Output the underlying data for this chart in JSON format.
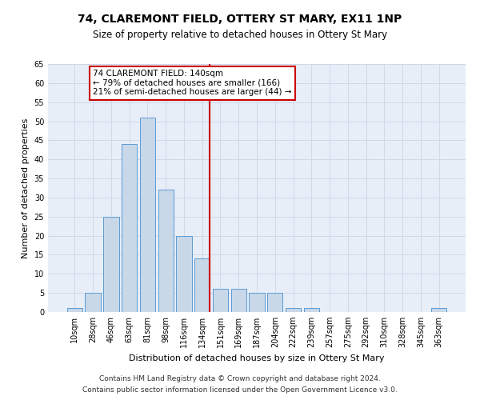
{
  "title": "74, CLAREMONT FIELD, OTTERY ST MARY, EX11 1NP",
  "subtitle": "Size of property relative to detached houses in Ottery St Mary",
  "xlabel": "Distribution of detached houses by size in Ottery St Mary",
  "ylabel": "Number of detached properties",
  "categories": [
    "10sqm",
    "28sqm",
    "46sqm",
    "63sqm",
    "81sqm",
    "98sqm",
    "116sqm",
    "134sqm",
    "151sqm",
    "169sqm",
    "187sqm",
    "204sqm",
    "222sqm",
    "239sqm",
    "257sqm",
    "275sqm",
    "292sqm",
    "310sqm",
    "328sqm",
    "345sqm",
    "363sqm"
  ],
  "values": [
    1,
    5,
    25,
    44,
    51,
    32,
    20,
    14,
    6,
    6,
    5,
    5,
    1,
    1,
    0,
    0,
    0,
    0,
    0,
    0,
    1
  ],
  "bar_color": "#c8d8e8",
  "bar_edge_color": "#5b9bd5",
  "vline_x_index": 7,
  "vline_color": "#cc0000",
  "annotation_text": "74 CLAREMONT FIELD: 140sqm\n← 79% of detached houses are smaller (166)\n21% of semi-detached houses are larger (44) →",
  "annotation_box_color": "#ffffff",
  "annotation_box_edge_color": "#cc0000",
  "ylim": [
    0,
    65
  ],
  "yticks": [
    0,
    5,
    10,
    15,
    20,
    25,
    30,
    35,
    40,
    45,
    50,
    55,
    60,
    65
  ],
  "grid_color": "#d0d8e8",
  "background_color": "#e8eef8",
  "footnote1": "Contains HM Land Registry data © Crown copyright and database right 2024.",
  "footnote2": "Contains public sector information licensed under the Open Government Licence v3.0.",
  "title_fontsize": 10,
  "subtitle_fontsize": 8.5,
  "xlabel_fontsize": 8,
  "ylabel_fontsize": 8,
  "tick_fontsize": 7,
  "footnote_fontsize": 6.5,
  "annotation_fontsize": 7.5
}
